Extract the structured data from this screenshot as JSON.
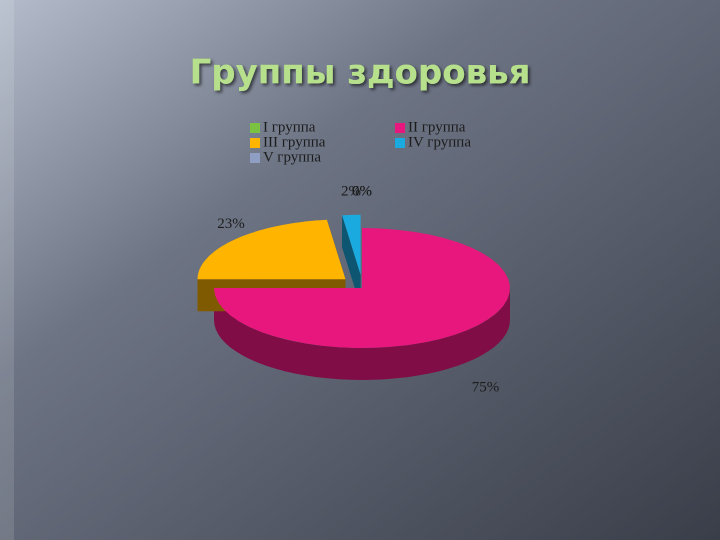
{
  "chart_data": {
    "type": "pie3d",
    "title": "Группы здоровья",
    "categories": [
      "I группа",
      "II группа",
      "III группа",
      "IV группа",
      "V группа"
    ],
    "values": [
      0,
      75,
      23,
      2,
      0
    ],
    "value_labels": [
      "0%",
      "75%",
      "23%",
      "2%",
      "0%"
    ],
    "colors": [
      "#7cc242",
      "#e8177d",
      "#ffb400",
      "#1aaadf",
      "#8e9fc3"
    ],
    "legend": "top"
  }
}
